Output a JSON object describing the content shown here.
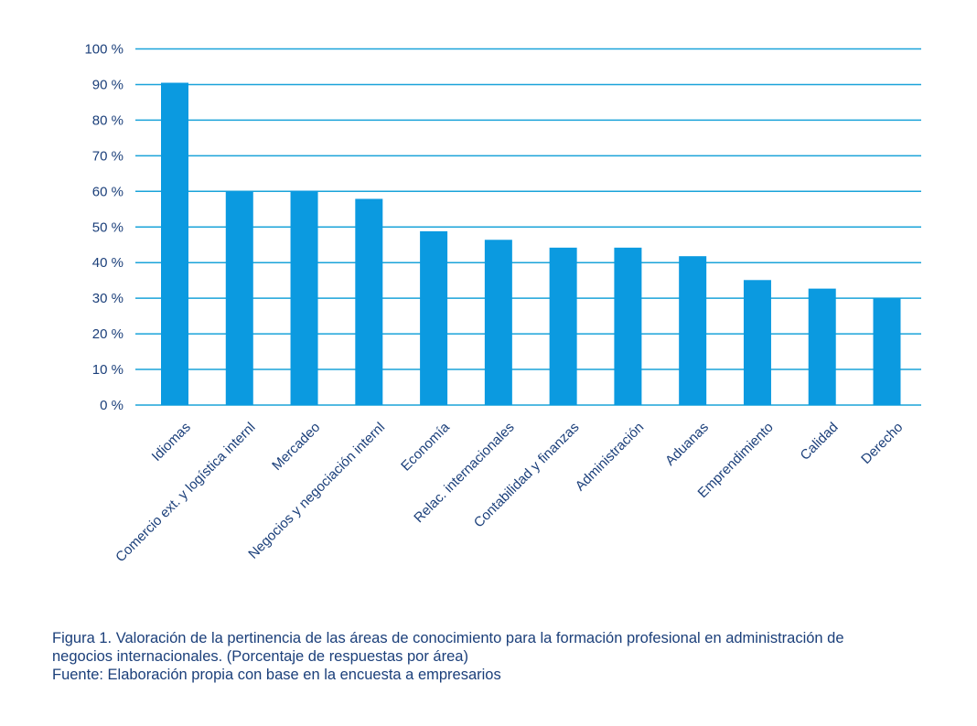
{
  "chart_data": {
    "type": "bar",
    "categories": [
      "Idiomas",
      "Comercio ext. y logística internl",
      "Mercadeo",
      "Negocios y negociación internl",
      "Economía",
      "Relac. internacionales",
      "Contabilidad y finanzas",
      "Administración",
      "Aduanas",
      "Emprendimiento",
      "Calidad",
      "Derecho"
    ],
    "values": [
      90.5,
      60,
      60.2,
      57.9,
      48.8,
      46.4,
      44.2,
      44.2,
      41.8,
      35.1,
      32.7,
      30
    ],
    "ylim": [
      0,
      100
    ],
    "yticks": [
      0,
      10,
      20,
      30,
      40,
      50,
      60,
      70,
      80,
      90,
      100
    ],
    "ytick_labels": [
      "0 %",
      "10 %",
      "20 %",
      "30 %",
      "40 %",
      "50 %",
      "60 %",
      "70 %",
      "80 %",
      "90 %",
      "100 %"
    ],
    "grid": true,
    "xlabel": "",
    "ylabel": "",
    "bar_color": "#0b9ae0",
    "grid_color": "#1aa3d9",
    "text_color": "#1b3f7a"
  },
  "caption": {
    "line1": "Figura 1. Valoración de la pertinencia de las áreas de conocimiento para la formación profesional en administración de",
    "line2": "negocios internacionales. (Porcentaje de respuestas por área)",
    "line3": "Fuente: Elaboración propia con base en la encuesta a empresarios"
  }
}
